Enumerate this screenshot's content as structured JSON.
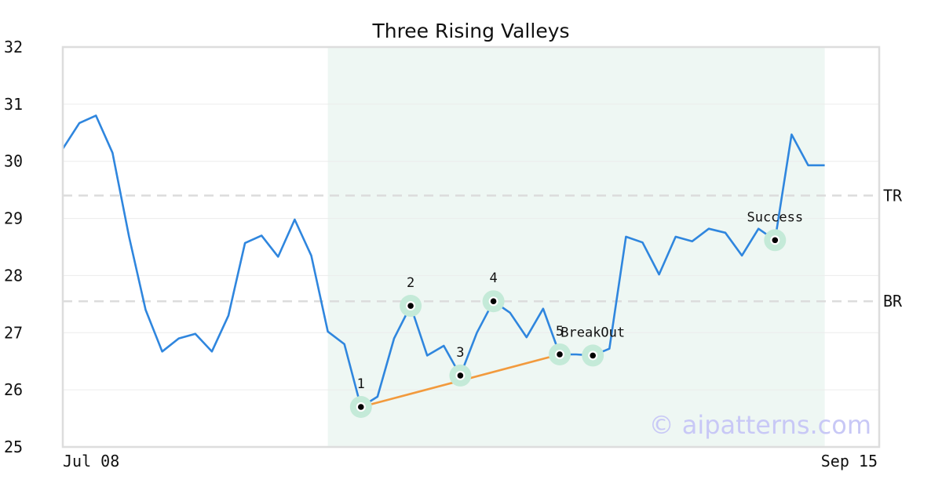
{
  "chart_data": {
    "type": "line",
    "title": "Three Rising Valleys",
    "xlabel": "",
    "ylabel": "",
    "ylim": [
      25,
      32
    ],
    "yticks": [
      25,
      26,
      27,
      28,
      29,
      30,
      31,
      32
    ],
    "x_labels": {
      "start": "Jul 08",
      "end": "Sep 15"
    },
    "grid": "horizontal",
    "series": [
      {
        "color": "#2f86de",
        "values": [
          30.22,
          30.67,
          30.8,
          30.15,
          28.68,
          27.4,
          26.67,
          26.9,
          26.98,
          26.67,
          27.3,
          28.57,
          28.7,
          28.33,
          28.98,
          28.35,
          27.02,
          26.8,
          25.7,
          25.88,
          26.9,
          27.47,
          26.6,
          26.77,
          26.25,
          27.0,
          27.55,
          27.35,
          26.92,
          27.42,
          26.62,
          26.62,
          26.6,
          26.72,
          28.68,
          28.58,
          28.02,
          28.68,
          28.6,
          28.82,
          28.75,
          28.35,
          28.82,
          28.62,
          30.47,
          29.93,
          29.93
        ]
      }
    ],
    "pattern_region": {
      "start_index": 16,
      "end_index": 46,
      "color": "#eef7f3"
    },
    "levels": [
      {
        "label": "TR",
        "value": 29.4
      },
      {
        "label": "BR",
        "value": 27.55
      }
    ],
    "trendline": {
      "from_index": 18,
      "to_index": 30,
      "color": "#f29a3d"
    },
    "markers": [
      {
        "index": 18,
        "label": "1"
      },
      {
        "index": 21,
        "label": "2"
      },
      {
        "index": 24,
        "label": "3"
      },
      {
        "index": 26,
        "label": "4"
      },
      {
        "index": 30,
        "label": "5"
      },
      {
        "index": 32,
        "label": "BreakOut"
      },
      {
        "index": 43,
        "label": "Success"
      }
    ],
    "watermark": "© aipatterns.com"
  }
}
